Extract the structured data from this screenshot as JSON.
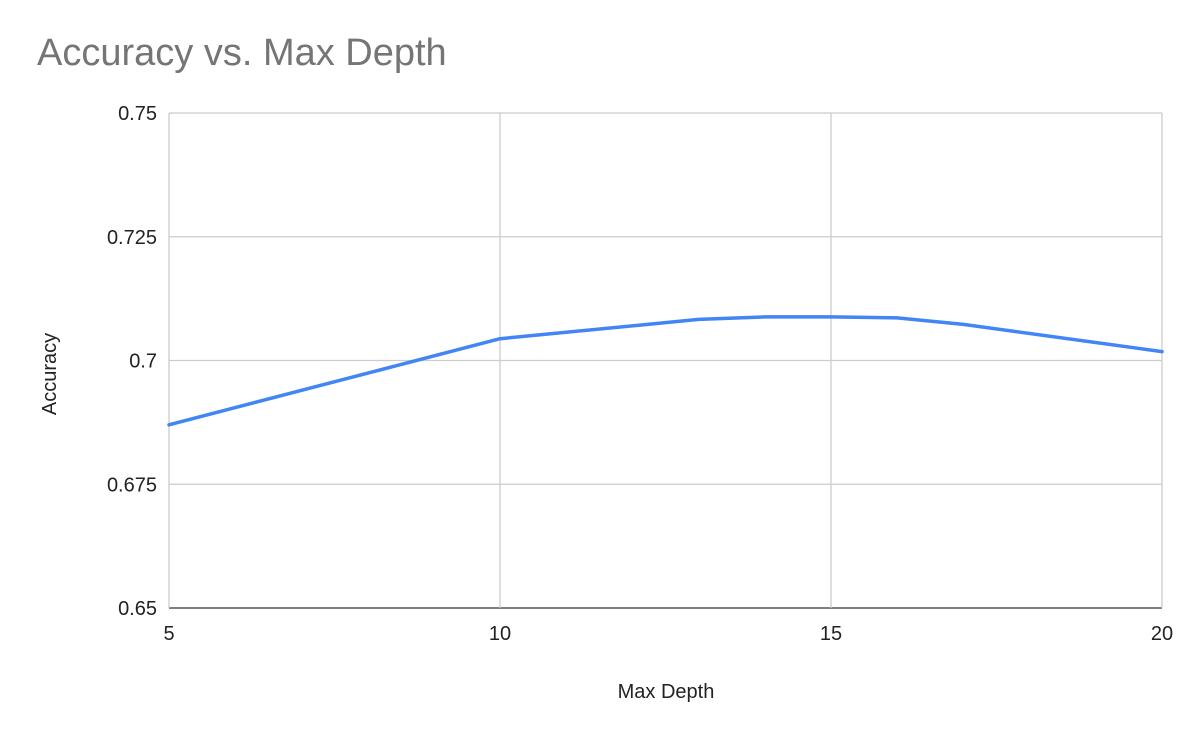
{
  "chart_data": {
    "type": "line",
    "title": "Accuracy vs. Max Depth",
    "xlabel": "Max Depth",
    "ylabel": "Accuracy",
    "xlim": [
      5,
      20
    ],
    "ylim": [
      0.65,
      0.75
    ],
    "xticks": [
      5,
      10,
      15,
      20
    ],
    "xtick_labels": [
      "5",
      "10",
      "15",
      "20"
    ],
    "yticks": [
      0.65,
      0.675,
      0.7,
      0.725,
      0.75
    ],
    "ytick_labels": [
      "0.65",
      "0.675",
      "0.7",
      "0.725",
      "0.75"
    ],
    "grid": true,
    "legend": "none",
    "series": [
      {
        "color": "#4285f4",
        "x": [
          5,
          10,
          13,
          14,
          15,
          16,
          17,
          20
        ],
        "y": [
          0.687,
          0.7044,
          0.7083,
          0.7088,
          0.7088,
          0.7086,
          0.7073,
          0.7018
        ]
      }
    ]
  }
}
